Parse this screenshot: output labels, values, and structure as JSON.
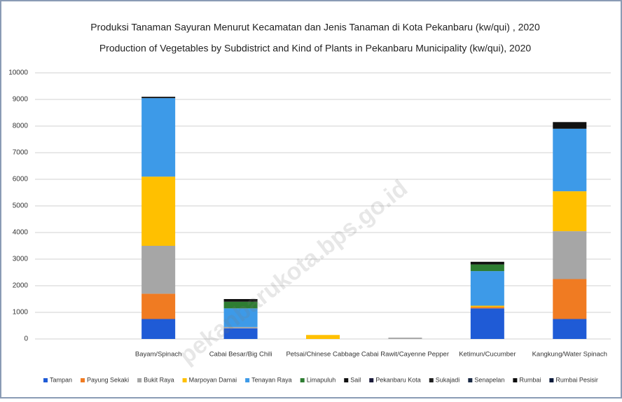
{
  "chart_data": {
    "type": "stacked_bar",
    "title": "Produksi Tanaman Sayuran Menurut Kecamatan dan Jenis Tanaman di Kota Pekanbaru (kw/qui) , 2020",
    "subtitle": "Production of Vegetables by Subdistrict and Kind of Plants in Pekanbaru Municipality (kw/qui), 2020",
    "watermark": "pekanbarukota.bps.go.id",
    "categories": [
      null,
      "Bayam/Spinach",
      "Cabai Besar/Big Chili",
      "Petsai/Chinese Cabbage",
      "Cabai Rawit/Cayenne Pepper",
      "Ketimun/Cucumber",
      "Kangkung/Water Spinach"
    ],
    "series": [
      {
        "name": "Tampan",
        "color": "#1f5bd6",
        "values": [
          null,
          750,
          400,
          0,
          0,
          1150,
          750
        ]
      },
      {
        "name": "Payung Sekaki",
        "color": "#f07b22",
        "values": [
          null,
          950,
          0,
          0,
          0,
          50,
          1500
        ]
      },
      {
        "name": "Bukit Raya",
        "color": "#a6a6a6",
        "values": [
          null,
          1800,
          50,
          0,
          50,
          0,
          1800
        ]
      },
      {
        "name": "Marpoyan Damai",
        "color": "#ffc000",
        "values": [
          null,
          2600,
          0,
          150,
          0,
          50,
          1500
        ]
      },
      {
        "name": "Tenayan Raya",
        "color": "#3d9ae8",
        "values": [
          null,
          2950,
          700,
          0,
          0,
          1300,
          2350
        ]
      },
      {
        "name": "Limapuluh",
        "color": "#2e7d32",
        "values": [
          null,
          0,
          250,
          0,
          0,
          250,
          0
        ]
      },
      {
        "name": "Sail",
        "color": "#111111",
        "values": [
          null,
          50,
          100,
          0,
          0,
          100,
          250
        ]
      },
      {
        "name": "Pekanbaru Kota",
        "color": "#1b1b3a",
        "values": [
          null,
          0,
          0,
          0,
          0,
          0,
          0
        ]
      },
      {
        "name": "Sukajadi",
        "color": "#202020",
        "values": [
          null,
          0,
          0,
          0,
          0,
          0,
          0
        ]
      },
      {
        "name": "Senapelan",
        "color": "#1a2a44",
        "values": [
          null,
          0,
          0,
          0,
          0,
          0,
          0
        ]
      },
      {
        "name": "Rumbai",
        "color": "#0d0d0d",
        "values": [
          null,
          0,
          0,
          0,
          0,
          0,
          0
        ]
      },
      {
        "name": "Rumbai Pesisir",
        "color": "#0b1a3a",
        "values": [
          null,
          0,
          0,
          0,
          0,
          0,
          0
        ]
      }
    ],
    "ylim": [
      0,
      10000
    ],
    "yticks": [
      0,
      1000,
      2000,
      3000,
      4000,
      5000,
      6000,
      7000,
      8000,
      9000,
      10000
    ],
    "grid": true,
    "legend": "bottom"
  }
}
